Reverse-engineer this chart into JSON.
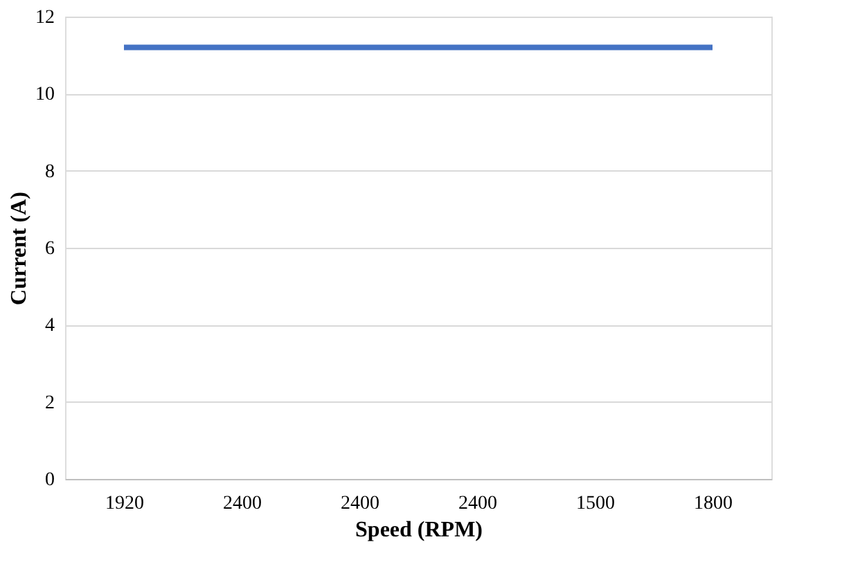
{
  "chart_data": {
    "type": "line",
    "xlabel": "Speed (RPM)",
    "ylabel": "Current (A)",
    "categories": [
      "1920",
      "2400",
      "2400",
      "2400",
      "1500",
      "1800"
    ],
    "series": [
      {
        "color": "#4472c4",
        "values": [
          11.2,
          11.2,
          11.2,
          11.2,
          11.2,
          11.2
        ]
      }
    ],
    "ylim": [
      0,
      12
    ],
    "yticks": [
      0,
      2,
      4,
      6,
      8,
      10,
      12
    ],
    "grid": "y",
    "marker": "none",
    "line_style": "solid"
  }
}
